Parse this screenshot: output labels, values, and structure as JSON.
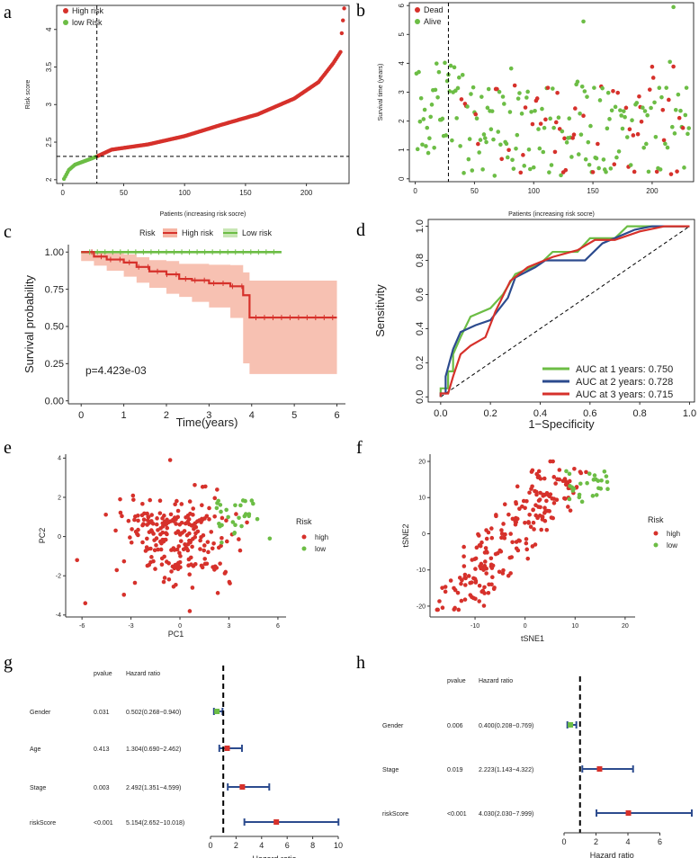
{
  "colors": {
    "red": "#d6312b",
    "green": "#6cbd45",
    "blue": "#2c4b8e",
    "shade": "#f6b6a5",
    "axis": "#333333",
    "dash": "#000000"
  },
  "chart_data": [
    {
      "panel": "a",
      "type": "scatter",
      "xlabel": "Patients (increasing risk socre)",
      "ylabel": "Risk score",
      "xlim": [
        -5,
        235
      ],
      "ylim": [
        1.95,
        4.32
      ],
      "xticks": [
        0,
        50,
        100,
        150,
        200
      ],
      "yticks": [
        2.0,
        2.5,
        3.0,
        3.5,
        4.0
      ],
      "cutoff_x": 28,
      "cutoff_y": 2.31,
      "legend": [
        {
          "label": "High risk",
          "color": "red"
        },
        {
          "label": "low Risk",
          "color": "green"
        }
      ],
      "curve": [
        [
          0,
          1.98
        ],
        [
          5,
          2.13
        ],
        [
          10,
          2.2
        ],
        [
          20,
          2.26
        ],
        [
          28,
          2.31
        ],
        [
          40,
          2.4
        ],
        [
          70,
          2.47
        ],
        [
          100,
          2.58
        ],
        [
          130,
          2.73
        ],
        [
          160,
          2.87
        ],
        [
          190,
          3.08
        ],
        [
          210,
          3.3
        ],
        [
          222,
          3.55
        ],
        [
          228,
          3.7
        ]
      ],
      "n_points": 231,
      "outliers": [
        [
          229,
          3.95
        ],
        [
          230,
          4.12
        ],
        [
          231,
          4.28
        ]
      ]
    },
    {
      "panel": "b",
      "type": "scatter",
      "xlabel": "Patients (increasing risk socre)",
      "ylabel": "Survival time (years)",
      "xlim": [
        -5,
        235
      ],
      "ylim": [
        -0.1,
        6.1
      ],
      "xticks": [
        0,
        50,
        100,
        150,
        200
      ],
      "yticks": [
        0,
        1,
        2,
        3,
        4,
        5,
        6
      ],
      "cutoff_x": 28,
      "legend": [
        {
          "label": "Dead",
          "color": "red"
        },
        {
          "label": "Alive",
          "color": "green"
        }
      ],
      "n_points": 231
    },
    {
      "panel": "c",
      "type": "line",
      "title_legend": "Risk",
      "legend": [
        {
          "label": "High risk",
          "color": "red"
        },
        {
          "label": "Low risk",
          "color": "green"
        }
      ],
      "xlabel": "Time(years)",
      "ylabel": "Survival probability",
      "xlim": [
        -0.3,
        6.2
      ],
      "ylim": [
        -0.02,
        1.05
      ],
      "xticks": [
        0,
        1,
        2,
        3,
        4,
        5,
        6
      ],
      "yticks": [
        "0.00",
        "0.25",
        "0.50",
        "0.75",
        "1.00"
      ],
      "pvalue": "p=4.423e-03",
      "series": [
        {
          "name": "High risk",
          "steps": [
            [
              0,
              1.0
            ],
            [
              0.3,
              0.97
            ],
            [
              0.6,
              0.95
            ],
            [
              1.0,
              0.93
            ],
            [
              1.3,
              0.9
            ],
            [
              1.6,
              0.87
            ],
            [
              2.0,
              0.85
            ],
            [
              2.3,
              0.82
            ],
            [
              2.6,
              0.81
            ],
            [
              3.0,
              0.79
            ],
            [
              3.5,
              0.77
            ],
            [
              3.8,
              0.71
            ],
            [
              3.95,
              0.56
            ],
            [
              6.0,
              0.56
            ]
          ]
        },
        {
          "name": "Low risk",
          "steps": [
            [
              0,
              1.0
            ],
            [
              4.7,
              1.0
            ]
          ]
        }
      ]
    },
    {
      "panel": "d",
      "type": "line",
      "xlabel": "1−Specificity",
      "ylabel": "Sensitivity",
      "xlim": [
        -0.05,
        1.02
      ],
      "ylim": [
        -0.03,
        1.04
      ],
      "xticks": [
        "0.0",
        "0.2",
        "0.4",
        "0.6",
        "0.8",
        "1.0"
      ],
      "yticks": [
        "0.0",
        "0.2",
        "0.4",
        "0.6",
        "0.8",
        "1.0"
      ],
      "series": [
        {
          "name": "AUC at 1 years: 0.750",
          "color": "green",
          "points": [
            [
              0,
              0
            ],
            [
              0,
              0.05
            ],
            [
              0.03,
              0.05
            ],
            [
              0.03,
              0.15
            ],
            [
              0.05,
              0.15
            ],
            [
              0.05,
              0.25
            ],
            [
              0.08,
              0.35
            ],
            [
              0.12,
              0.47
            ],
            [
              0.2,
              0.52
            ],
            [
              0.25,
              0.6
            ],
            [
              0.3,
              0.72
            ],
            [
              0.4,
              0.78
            ],
            [
              0.45,
              0.85
            ],
            [
              0.55,
              0.85
            ],
            [
              0.6,
              0.93
            ],
            [
              0.7,
              0.93
            ],
            [
              0.75,
              1.0
            ],
            [
              1.0,
              1.0
            ]
          ]
        },
        {
          "name": "AUC at 2 years: 0.728",
          "color": "blue",
          "points": [
            [
              0,
              0
            ],
            [
              0,
              0.02
            ],
            [
              0.02,
              0.02
            ],
            [
              0.02,
              0.12
            ],
            [
              0.05,
              0.28
            ],
            [
              0.08,
              0.38
            ],
            [
              0.14,
              0.42
            ],
            [
              0.2,
              0.45
            ],
            [
              0.27,
              0.58
            ],
            [
              0.3,
              0.7
            ],
            [
              0.38,
              0.76
            ],
            [
              0.42,
              0.8
            ],
            [
              0.58,
              0.8
            ],
            [
              0.65,
              0.9
            ],
            [
              0.78,
              0.98
            ],
            [
              0.85,
              1.0
            ],
            [
              1.0,
              1.0
            ]
          ]
        },
        {
          "name": "AUC at 3 years: 0.715",
          "color": "red",
          "points": [
            [
              0,
              0
            ],
            [
              0,
              0.02
            ],
            [
              0.03,
              0.02
            ],
            [
              0.05,
              0.12
            ],
            [
              0.08,
              0.25
            ],
            [
              0.12,
              0.3
            ],
            [
              0.18,
              0.35
            ],
            [
              0.22,
              0.5
            ],
            [
              0.28,
              0.68
            ],
            [
              0.35,
              0.76
            ],
            [
              0.45,
              0.82
            ],
            [
              0.55,
              0.86
            ],
            [
              0.62,
              0.92
            ],
            [
              0.7,
              0.92
            ],
            [
              0.8,
              0.97
            ],
            [
              0.9,
              1.0
            ],
            [
              1.0,
              1.0
            ]
          ]
        }
      ]
    },
    {
      "panel": "e",
      "type": "scatter",
      "xlabel": "PC1",
      "ylabel": "PC2",
      "xlim": [
        -7,
        6.5
      ],
      "ylim": [
        -4.1,
        4.2
      ],
      "xticks": [
        -6,
        -3,
        0,
        3,
        6
      ],
      "yticks": [
        -4,
        -2,
        0,
        2,
        4
      ],
      "legend_title": "Risk",
      "legend": [
        {
          "label": "high",
          "color": "red"
        },
        {
          "label": "low",
          "color": "green"
        }
      ]
    },
    {
      "panel": "f",
      "type": "scatter",
      "xlabel": "tSNE1",
      "ylabel": "tSNE2",
      "xlim": [
        -19,
        22
      ],
      "ylim": [
        -23,
        22
      ],
      "xticks": [
        -10,
        0,
        10,
        20
      ],
      "yticks": [
        -20,
        -10,
        0,
        10,
        20
      ],
      "legend_title": "Risk",
      "legend": [
        {
          "label": "high",
          "color": "red"
        },
        {
          "label": "low",
          "color": "green"
        }
      ]
    },
    {
      "panel": "g",
      "type": "forest",
      "col_pvalue": "pvalue",
      "col_hr": "Hazard ratio",
      "xlabel": "Hazard ratio",
      "xlim": [
        0,
        10
      ],
      "xticks": [
        0,
        2,
        4,
        6,
        8,
        10
      ],
      "rows": [
        {
          "name": "Gender",
          "pvalue": "0.031",
          "hr_text": "0.502(0.268−0.940)",
          "hr": 0.502,
          "low": 0.268,
          "high": 0.94
        },
        {
          "name": "Age",
          "pvalue": "0.413",
          "hr_text": "1.304(0.690−2.462)",
          "hr": 1.304,
          "low": 0.69,
          "high": 2.462
        },
        {
          "name": "Stage",
          "pvalue": "0.003",
          "hr_text": "2.492(1.351−4.599)",
          "hr": 2.492,
          "low": 1.351,
          "high": 4.599
        },
        {
          "name": "riskScore",
          "pvalue": "<0.001",
          "hr_text": "5.154(2.652−10.018)",
          "hr": 5.154,
          "low": 2.652,
          "high": 10.018
        }
      ]
    },
    {
      "panel": "h",
      "type": "forest",
      "col_pvalue": "pvalue",
      "col_hr": "Hazard ratio",
      "xlabel": "Hazard ratio",
      "xlim": [
        0,
        8
      ],
      "xticks": [
        0,
        2,
        4,
        6
      ],
      "rows": [
        {
          "name": "Gender",
          "pvalue": "0.006",
          "hr_text": "0.400(0.208−0.769)",
          "hr": 0.4,
          "low": 0.208,
          "high": 0.769
        },
        {
          "name": "Stage",
          "pvalue": "0.019",
          "hr_text": "2.223(1.143−4.322)",
          "hr": 2.223,
          "low": 1.143,
          "high": 4.322
        },
        {
          "name": "riskScore",
          "pvalue": "<0.001",
          "hr_text": "4.030(2.030−7.999)",
          "hr": 4.03,
          "low": 2.03,
          "high": 7.999
        }
      ]
    }
  ]
}
